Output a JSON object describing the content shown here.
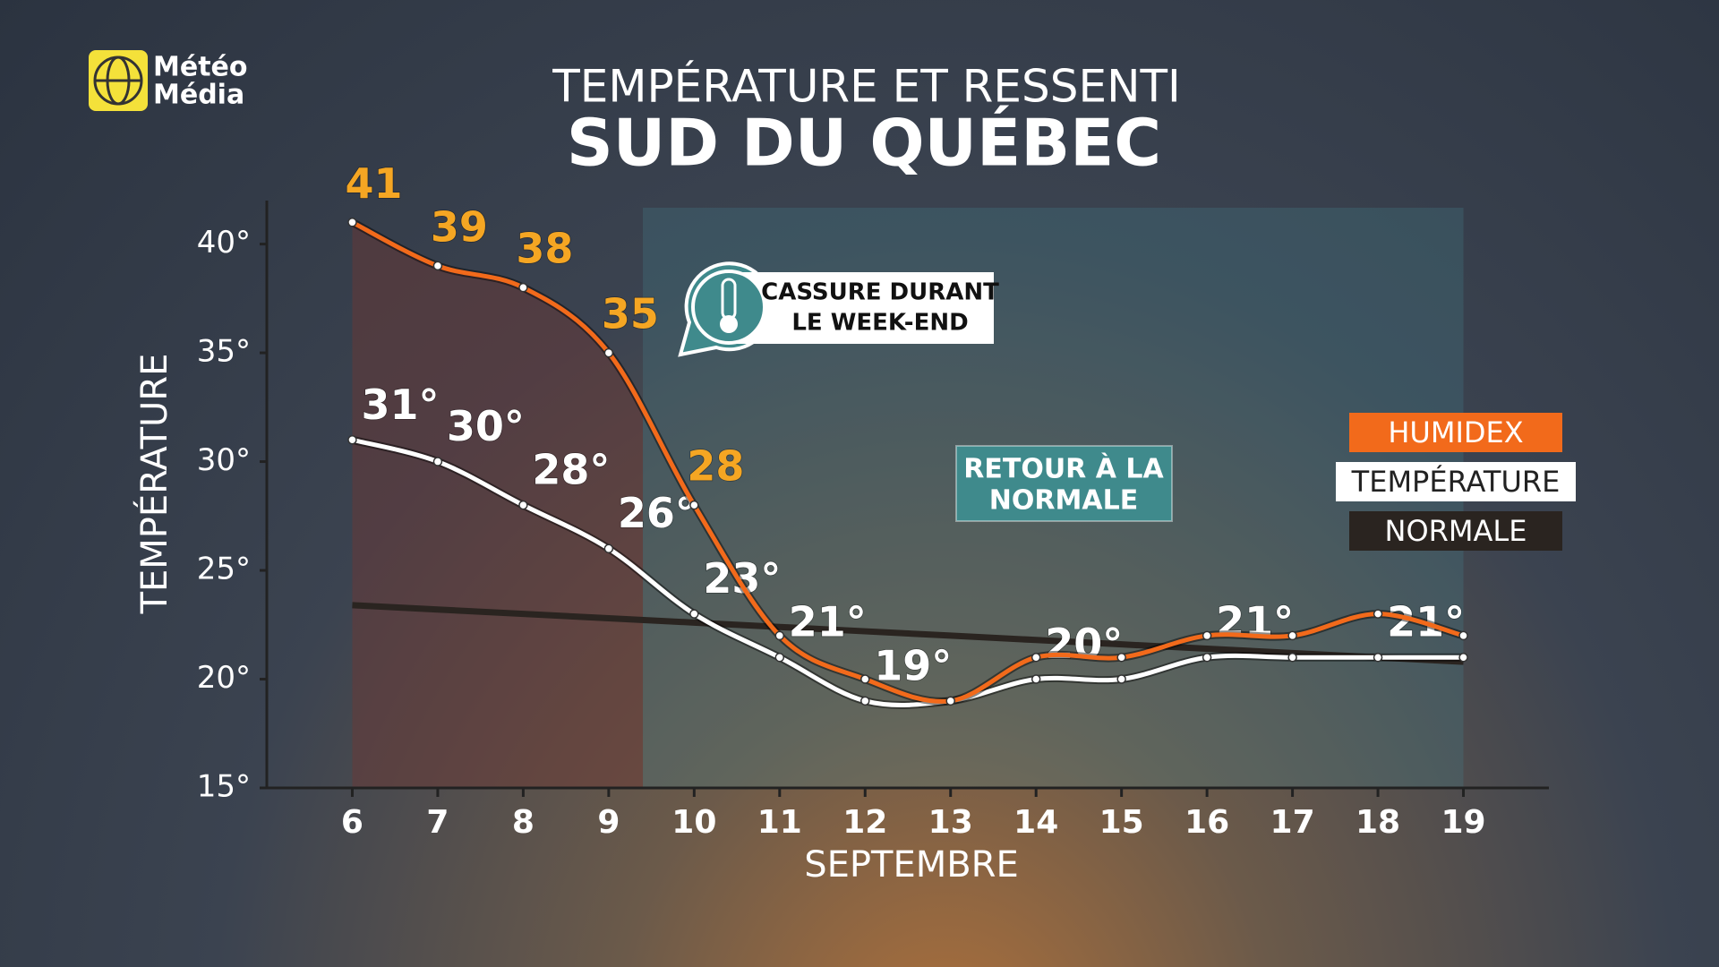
{
  "logo": [
    "Météo",
    "Média"
  ],
  "chart_data": {
    "type": "line",
    "title": "TEMPÉRATURE ET RESSENTI",
    "subtitle": "SUD DU QUÉBEC",
    "x_label": "SEPTEMBRE",
    "y_label": "TEMPÉRATURE",
    "x": [
      6,
      7,
      8,
      9,
      10,
      11,
      12,
      13,
      14,
      15,
      16,
      17,
      18,
      19
    ],
    "xlim": [
      5,
      20
    ],
    "xticks": [
      6,
      7,
      8,
      9,
      10,
      11,
      12,
      13,
      14,
      15,
      16,
      17,
      18,
      19
    ],
    "ylim": [
      15,
      42
    ],
    "yticks": [
      {
        "value": 15,
        "label": "15°"
      },
      {
        "value": 20,
        "label": "20°"
      },
      {
        "value": 25,
        "label": "25°"
      },
      {
        "value": 30,
        "label": "30°"
      },
      {
        "value": 35,
        "label": "35°"
      },
      {
        "value": 40,
        "label": "40°"
      }
    ],
    "legend": "right",
    "series": [
      {
        "name": "HUMIDEX",
        "color": "#f26a1b",
        "label_color": "#f5a623",
        "values": [
          41,
          39,
          38,
          35,
          28,
          22,
          20,
          19,
          21,
          21,
          22,
          22,
          23,
          22
        ],
        "value_labels": [
          "41",
          "39",
          "38",
          "35",
          "28",
          null,
          null,
          null,
          null,
          null,
          null,
          null,
          null,
          null
        ]
      },
      {
        "name": "TEMPÉRATURE",
        "color": "#ffffff",
        "label_color": "#ffffff",
        "values": [
          31,
          30,
          28,
          26,
          23,
          21,
          19,
          19,
          20,
          20,
          21,
          21,
          21,
          21
        ],
        "value_labels": [
          "31°",
          "30°",
          "28°",
          "26°",
          "23°",
          "21°",
          "19°",
          null,
          "20°",
          null,
          "21°",
          null,
          "21°",
          null
        ]
      },
      {
        "name": "NORMALE",
        "color": "#2a2420",
        "values": [
          23.4,
          23.2,
          23.0,
          22.8,
          22.6,
          22.4,
          22.2,
          22.0,
          21.8,
          21.6,
          21.4,
          21.2,
          21.0,
          20.8
        ]
      }
    ],
    "annotations": [
      [
        "CASSURE DURANT",
        "LE WEEK-END"
      ],
      [
        "RETOUR À LA",
        "NORMALE"
      ]
    ]
  }
}
